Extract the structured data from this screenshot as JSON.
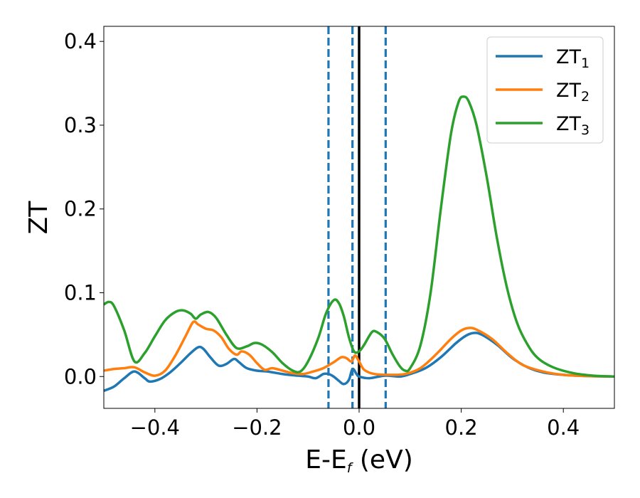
{
  "chart_data": {
    "type": "line",
    "xlabel_main": "E-E",
    "xlabel_sub": "f",
    "xlabel_unit": " (eV)",
    "ylabel": "ZT",
    "xlim": [
      -0.5,
      0.5
    ],
    "ylim": [
      -0.038,
      0.418
    ],
    "xticks": [
      -0.4,
      -0.2,
      0.0,
      0.2,
      0.4
    ],
    "xtick_labels": [
      "−0.4",
      "−0.2",
      "0.0",
      "0.2",
      "0.4"
    ],
    "yticks": [
      0.0,
      0.1,
      0.2,
      0.3,
      0.4
    ],
    "ytick_labels": [
      "0.0",
      "0.1",
      "0.2",
      "0.3",
      "0.4"
    ],
    "grid": false,
    "legend_position": "top-right",
    "vlines": [
      {
        "x": -0.06,
        "style": "dashed",
        "color": "#1f77b4"
      },
      {
        "x": -0.013,
        "style": "dashed",
        "color": "#1f77b4"
      },
      {
        "x": 0.052,
        "style": "dashed",
        "color": "#1f77b4"
      },
      {
        "x": 0.0,
        "style": "solid",
        "color": "#000000"
      }
    ],
    "series": [
      {
        "name": "ZT",
        "name_sub": "1",
        "color": "#1f77b4",
        "points": [
          [
            -0.5,
            -0.017
          ],
          [
            -0.48,
            -0.012
          ],
          [
            -0.46,
            -0.002
          ],
          [
            -0.44,
            0.006
          ],
          [
            -0.42,
            -0.002
          ],
          [
            -0.41,
            -0.006
          ],
          [
            -0.39,
            -0.003
          ],
          [
            -0.37,
            0.005
          ],
          [
            -0.35,
            0.016
          ],
          [
            -0.33,
            0.028
          ],
          [
            -0.315,
            0.035
          ],
          [
            -0.305,
            0.033
          ],
          [
            -0.29,
            0.022
          ],
          [
            -0.275,
            0.013
          ],
          [
            -0.26,
            0.015
          ],
          [
            -0.245,
            0.021
          ],
          [
            -0.235,
            0.017
          ],
          [
            -0.22,
            0.01
          ],
          [
            -0.2,
            0.007
          ],
          [
            -0.18,
            0.006
          ],
          [
            -0.15,
            0.003
          ],
          [
            -0.12,
            0.001
          ],
          [
            -0.1,
            0.0
          ],
          [
            -0.085,
            -0.002
          ],
          [
            -0.07,
            0.003
          ],
          [
            -0.06,
            0.003
          ],
          [
            -0.05,
            0.0
          ],
          [
            -0.04,
            -0.005
          ],
          [
            -0.03,
            -0.009
          ],
          [
            -0.02,
            -0.004
          ],
          [
            -0.013,
            0.009
          ],
          [
            -0.005,
            0.003
          ],
          [
            0.0,
            0.0
          ],
          [
            0.02,
            -0.002
          ],
          [
            0.05,
            0.001
          ],
          [
            0.08,
            0.0
          ],
          [
            0.1,
            0.003
          ],
          [
            0.13,
            0.01
          ],
          [
            0.16,
            0.023
          ],
          [
            0.19,
            0.04
          ],
          [
            0.21,
            0.049
          ],
          [
            0.225,
            0.052
          ],
          [
            0.24,
            0.05
          ],
          [
            0.27,
            0.038
          ],
          [
            0.3,
            0.022
          ],
          [
            0.33,
            0.011
          ],
          [
            0.36,
            0.005
          ],
          [
            0.4,
            0.002
          ],
          [
            0.45,
            0.0005
          ],
          [
            0.5,
            0.0
          ]
        ]
      },
      {
        "name": "ZT",
        "name_sub": "2",
        "color": "#ff7f0e",
        "points": [
          [
            -0.5,
            0.007
          ],
          [
            -0.48,
            0.009
          ],
          [
            -0.46,
            0.01
          ],
          [
            -0.44,
            0.011
          ],
          [
            -0.42,
            0.005
          ],
          [
            -0.4,
            0.001
          ],
          [
            -0.38,
            0.007
          ],
          [
            -0.36,
            0.025
          ],
          [
            -0.34,
            0.048
          ],
          [
            -0.325,
            0.065
          ],
          [
            -0.315,
            0.062
          ],
          [
            -0.3,
            0.057
          ],
          [
            -0.285,
            0.055
          ],
          [
            -0.27,
            0.047
          ],
          [
            -0.255,
            0.033
          ],
          [
            -0.24,
            0.026
          ],
          [
            -0.23,
            0.03
          ],
          [
            -0.215,
            0.026
          ],
          [
            -0.2,
            0.016
          ],
          [
            -0.185,
            0.008
          ],
          [
            -0.17,
            0.01
          ],
          [
            -0.15,
            0.007
          ],
          [
            -0.13,
            0.004
          ],
          [
            -0.11,
            0.003
          ],
          [
            -0.09,
            0.006
          ],
          [
            -0.07,
            0.01
          ],
          [
            -0.05,
            0.017
          ],
          [
            -0.035,
            0.023
          ],
          [
            -0.025,
            0.022
          ],
          [
            -0.015,
            0.018
          ],
          [
            -0.008,
            0.025
          ],
          [
            0.0,
            0.018
          ],
          [
            0.01,
            0.008
          ],
          [
            0.03,
            0.003
          ],
          [
            0.06,
            0.002
          ],
          [
            0.09,
            0.003
          ],
          [
            0.12,
            0.01
          ],
          [
            0.15,
            0.026
          ],
          [
            0.18,
            0.045
          ],
          [
            0.2,
            0.055
          ],
          [
            0.215,
            0.058
          ],
          [
            0.23,
            0.056
          ],
          [
            0.26,
            0.045
          ],
          [
            0.29,
            0.028
          ],
          [
            0.32,
            0.014
          ],
          [
            0.36,
            0.006
          ],
          [
            0.4,
            0.002
          ],
          [
            0.45,
            0.0005
          ],
          [
            0.5,
            0.0
          ]
        ]
      },
      {
        "name": "ZT",
        "name_sub": "3",
        "color": "#2ca02c",
        "points": [
          [
            -0.5,
            0.086
          ],
          [
            -0.49,
            0.089
          ],
          [
            -0.48,
            0.084
          ],
          [
            -0.46,
            0.055
          ],
          [
            -0.44,
            0.018
          ],
          [
            -0.42,
            0.028
          ],
          [
            -0.4,
            0.048
          ],
          [
            -0.38,
            0.067
          ],
          [
            -0.36,
            0.077
          ],
          [
            -0.345,
            0.079
          ],
          [
            -0.33,
            0.075
          ],
          [
            -0.32,
            0.069
          ],
          [
            -0.31,
            0.074
          ],
          [
            -0.295,
            0.077
          ],
          [
            -0.28,
            0.07
          ],
          [
            -0.26,
            0.05
          ],
          [
            -0.24,
            0.034
          ],
          [
            -0.22,
            0.036
          ],
          [
            -0.205,
            0.04
          ],
          [
            -0.19,
            0.038
          ],
          [
            -0.17,
            0.029
          ],
          [
            -0.15,
            0.016
          ],
          [
            -0.13,
            0.007
          ],
          [
            -0.115,
            0.006
          ],
          [
            -0.1,
            0.018
          ],
          [
            -0.08,
            0.046
          ],
          [
            -0.065,
            0.075
          ],
          [
            -0.05,
            0.091
          ],
          [
            -0.04,
            0.088
          ],
          [
            -0.03,
            0.072
          ],
          [
            -0.02,
            0.047
          ],
          [
            -0.01,
            0.03
          ],
          [
            0.0,
            0.03
          ],
          [
            0.01,
            0.038
          ],
          [
            0.025,
            0.053
          ],
          [
            0.035,
            0.053
          ],
          [
            0.05,
            0.045
          ],
          [
            0.065,
            0.027
          ],
          [
            0.08,
            0.012
          ],
          [
            0.09,
            0.007
          ],
          [
            0.1,
            0.01
          ],
          [
            0.12,
            0.037
          ],
          [
            0.14,
            0.1
          ],
          [
            0.16,
            0.2
          ],
          [
            0.18,
            0.29
          ],
          [
            0.195,
            0.328
          ],
          [
            0.205,
            0.334
          ],
          [
            0.215,
            0.328
          ],
          [
            0.23,
            0.3
          ],
          [
            0.25,
            0.238
          ],
          [
            0.27,
            0.165
          ],
          [
            0.29,
            0.105
          ],
          [
            0.31,
            0.063
          ],
          [
            0.33,
            0.038
          ],
          [
            0.35,
            0.022
          ],
          [
            0.38,
            0.011
          ],
          [
            0.42,
            0.004
          ],
          [
            0.46,
            0.001
          ],
          [
            0.5,
            0.0
          ]
        ]
      }
    ]
  }
}
